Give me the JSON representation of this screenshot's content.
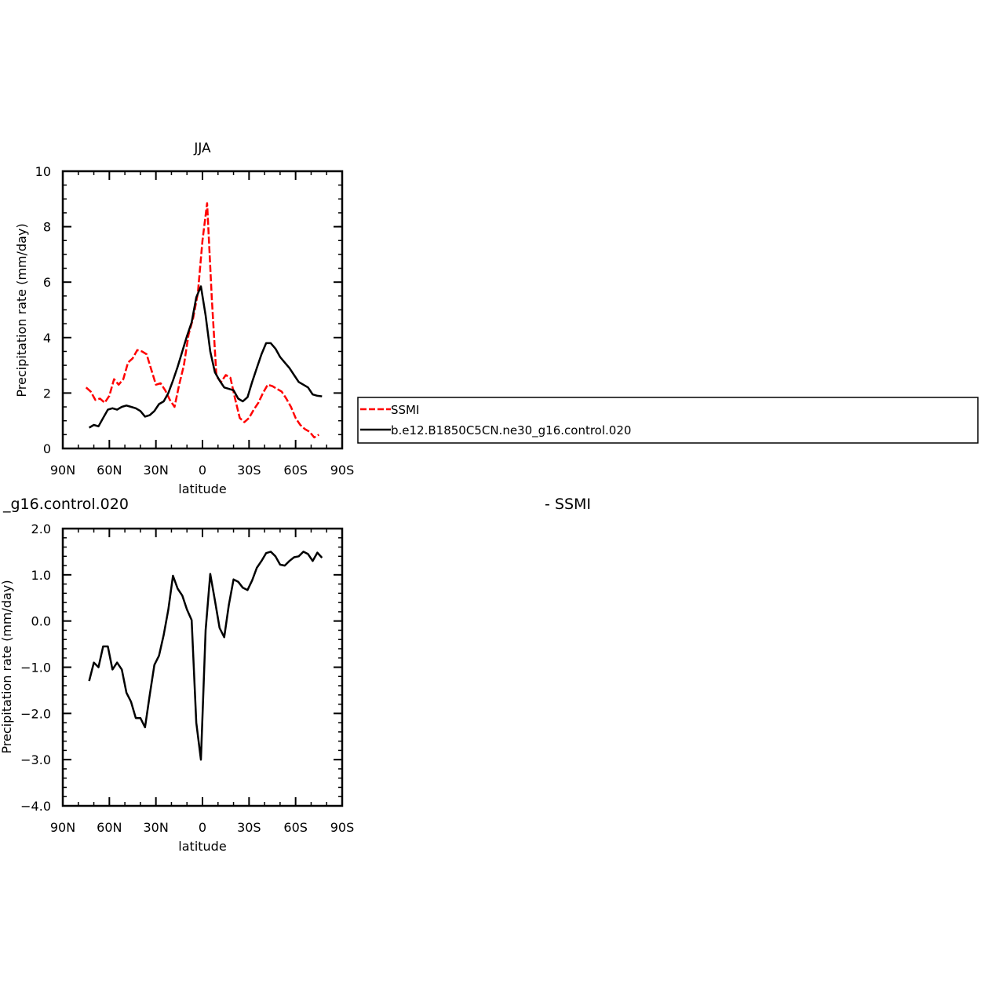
{
  "chart_data": [
    {
      "type": "line",
      "title": "JJA",
      "xlabel": "latitude",
      "ylabel": "Precipitation rate (mm/day)",
      "xlim": [
        90,
        -90
      ],
      "ylim": [
        0,
        10
      ],
      "x_ticks": [
        {
          "value": 90,
          "label": "90N"
        },
        {
          "value": 60,
          "label": "60N"
        },
        {
          "value": 30,
          "label": "30N"
        },
        {
          "value": 0,
          "label": "0"
        },
        {
          "value": -30,
          "label": "30S"
        },
        {
          "value": -60,
          "label": "60S"
        },
        {
          "value": -90,
          "label": "90S"
        }
      ],
      "y_ticks": [
        {
          "value": 0,
          "label": "0"
        },
        {
          "value": 2,
          "label": "2"
        },
        {
          "value": 4,
          "label": "4"
        },
        {
          "value": 6,
          "label": "6"
        },
        {
          "value": 8,
          "label": "8"
        },
        {
          "value": 10,
          "label": "10"
        }
      ],
      "legend": {
        "placement": "right, outside plot",
        "entries": [
          "SSMI",
          "b.e12.B1850C5CN.ne30_g16.control.020"
        ]
      },
      "series": [
        {
          "name": "SSMI",
          "color": "#ff0000",
          "dash": "dashed",
          "points": [
            [
              75,
              2.2
            ],
            [
              72,
              2.05
            ],
            [
              69,
              1.75
            ],
            [
              66,
              1.8
            ],
            [
              63,
              1.65
            ],
            [
              60,
              1.9
            ],
            [
              57,
              2.5
            ],
            [
              54,
              2.3
            ],
            [
              51,
              2.5
            ],
            [
              48,
              3.1
            ],
            [
              45,
              3.25
            ],
            [
              42,
              3.55
            ],
            [
              39,
              3.5
            ],
            [
              36,
              3.4
            ],
            [
              33,
              2.85
            ],
            [
              30,
              2.3
            ],
            [
              27,
              2.35
            ],
            [
              24,
              2.1
            ],
            [
              21,
              1.75
            ],
            [
              18,
              1.5
            ],
            [
              15,
              2.3
            ],
            [
              12,
              3.0
            ],
            [
              9,
              4.1
            ],
            [
              6,
              4.7
            ],
            [
              3,
              5.6
            ],
            [
              0,
              7.5
            ],
            [
              -3,
              8.85
            ],
            [
              -6,
              5.4
            ],
            [
              -9,
              2.6
            ],
            [
              -12,
              2.4
            ],
            [
              -15,
              2.65
            ],
            [
              -18,
              2.55
            ],
            [
              -21,
              1.8
            ],
            [
              -24,
              1.1
            ],
            [
              -27,
              0.95
            ],
            [
              -30,
              1.1
            ],
            [
              -33,
              1.4
            ],
            [
              -36,
              1.65
            ],
            [
              -39,
              2.0
            ],
            [
              -42,
              2.3
            ],
            [
              -45,
              2.25
            ],
            [
              -48,
              2.15
            ],
            [
              -51,
              2.05
            ],
            [
              -54,
              1.8
            ],
            [
              -57,
              1.5
            ],
            [
              -60,
              1.1
            ],
            [
              -63,
              0.85
            ],
            [
              -66,
              0.7
            ],
            [
              -69,
              0.6
            ],
            [
              -72,
              0.4
            ],
            [
              -75,
              0.5
            ]
          ]
        },
        {
          "name": "b.e12.B1850C5CN.ne30_g16.control.020",
          "color": "#000000",
          "dash": "solid",
          "points": [
            [
              73,
              0.75
            ],
            [
              70,
              0.85
            ],
            [
              67,
              0.8
            ],
            [
              64,
              1.1
            ],
            [
              61,
              1.4
            ],
            [
              58,
              1.45
            ],
            [
              55,
              1.4
            ],
            [
              52,
              1.5
            ],
            [
              49,
              1.55
            ],
            [
              46,
              1.5
            ],
            [
              43,
              1.45
            ],
            [
              40,
              1.35
            ],
            [
              37,
              1.15
            ],
            [
              34,
              1.2
            ],
            [
              31,
              1.35
            ],
            [
              28,
              1.6
            ],
            [
              25,
              1.7
            ],
            [
              22,
              2.0
            ],
            [
              19,
              2.45
            ],
            [
              16,
              2.95
            ],
            [
              13,
              3.5
            ],
            [
              10,
              4.05
            ],
            [
              7,
              4.55
            ],
            [
              4,
              5.45
            ],
            [
              1,
              5.85
            ],
            [
              -2,
              4.8
            ],
            [
              -5,
              3.5
            ],
            [
              -8,
              2.75
            ],
            [
              -11,
              2.45
            ],
            [
              -14,
              2.2
            ],
            [
              -17,
              2.15
            ],
            [
              -20,
              2.1
            ],
            [
              -23,
              1.8
            ],
            [
              -26,
              1.7
            ],
            [
              -29,
              1.85
            ],
            [
              -32,
              2.4
            ],
            [
              -35,
              2.9
            ],
            [
              -38,
              3.4
            ],
            [
              -41,
              3.8
            ],
            [
              -44,
              3.8
            ],
            [
              -47,
              3.6
            ],
            [
              -50,
              3.3
            ],
            [
              -53,
              3.1
            ],
            [
              -56,
              2.9
            ],
            [
              -59,
              2.65
            ],
            [
              -62,
              2.4
            ],
            [
              -65,
              2.3
            ],
            [
              -68,
              2.2
            ],
            [
              -71,
              1.95
            ],
            [
              -74,
              1.9
            ],
            [
              -77,
              1.88
            ]
          ]
        }
      ]
    },
    {
      "type": "line",
      "title": "_g16.control.020",
      "title_right": "- SSMI",
      "xlabel": "latitude",
      "ylabel": "Precipitation rate (mm/day)",
      "xlim": [
        90,
        -90
      ],
      "ylim": [
        -4,
        2
      ],
      "x_ticks": [
        {
          "value": 90,
          "label": "90N"
        },
        {
          "value": 60,
          "label": "60N"
        },
        {
          "value": 30,
          "label": "30N"
        },
        {
          "value": 0,
          "label": "0"
        },
        {
          "value": -30,
          "label": "30S"
        },
        {
          "value": -60,
          "label": "60S"
        },
        {
          "value": -90,
          "label": "90S"
        }
      ],
      "y_ticks": [
        {
          "value": -4,
          "label": "−4.0"
        },
        {
          "value": -3,
          "label": "−3.0"
        },
        {
          "value": -2,
          "label": "−2.0"
        },
        {
          "value": -1,
          "label": "−1.0"
        },
        {
          "value": 0,
          "label": "0.0"
        },
        {
          "value": 1,
          "label": "1.0"
        },
        {
          "value": 2,
          "label": "2.0"
        }
      ],
      "series": [
        {
          "color": "#000000",
          "dash": "solid",
          "points": [
            [
              73,
              -1.3
            ],
            [
              70,
              -0.9
            ],
            [
              67,
              -1.0
            ],
            [
              64,
              -0.55
            ],
            [
              61,
              -0.55
            ],
            [
              58,
              -1.05
            ],
            [
              55,
              -0.9
            ],
            [
              52,
              -1.05
            ],
            [
              49,
              -1.55
            ],
            [
              46,
              -1.75
            ],
            [
              43,
              -2.1
            ],
            [
              40,
              -2.1
            ],
            [
              37,
              -2.3
            ],
            [
              34,
              -1.6
            ],
            [
              31,
              -0.95
            ],
            [
              28,
              -0.75
            ],
            [
              25,
              -0.3
            ],
            [
              22,
              0.25
            ],
            [
              19,
              0.98
            ],
            [
              16,
              0.7
            ],
            [
              13,
              0.55
            ],
            [
              10,
              0.25
            ],
            [
              7,
              0.02
            ],
            [
              4,
              -2.2
            ],
            [
              1,
              -3.0
            ],
            [
              -2,
              -0.2
            ],
            [
              -5,
              1.02
            ],
            [
              -8,
              0.45
            ],
            [
              -11,
              -0.15
            ],
            [
              -14,
              -0.35
            ],
            [
              -17,
              0.35
            ],
            [
              -20,
              0.9
            ],
            [
              -23,
              0.85
            ],
            [
              -26,
              0.72
            ],
            [
              -29,
              0.67
            ],
            [
              -32,
              0.88
            ],
            [
              -35,
              1.15
            ],
            [
              -38,
              1.3
            ],
            [
              -41,
              1.47
            ],
            [
              -44,
              1.5
            ],
            [
              -47,
              1.4
            ],
            [
              -50,
              1.22
            ],
            [
              -53,
              1.2
            ],
            [
              -56,
              1.3
            ],
            [
              -59,
              1.38
            ],
            [
              -62,
              1.4
            ],
            [
              -65,
              1.5
            ],
            [
              -68,
              1.45
            ],
            [
              -71,
              1.3
            ],
            [
              -74,
              1.48
            ],
            [
              -77,
              1.37
            ]
          ]
        }
      ]
    }
  ]
}
